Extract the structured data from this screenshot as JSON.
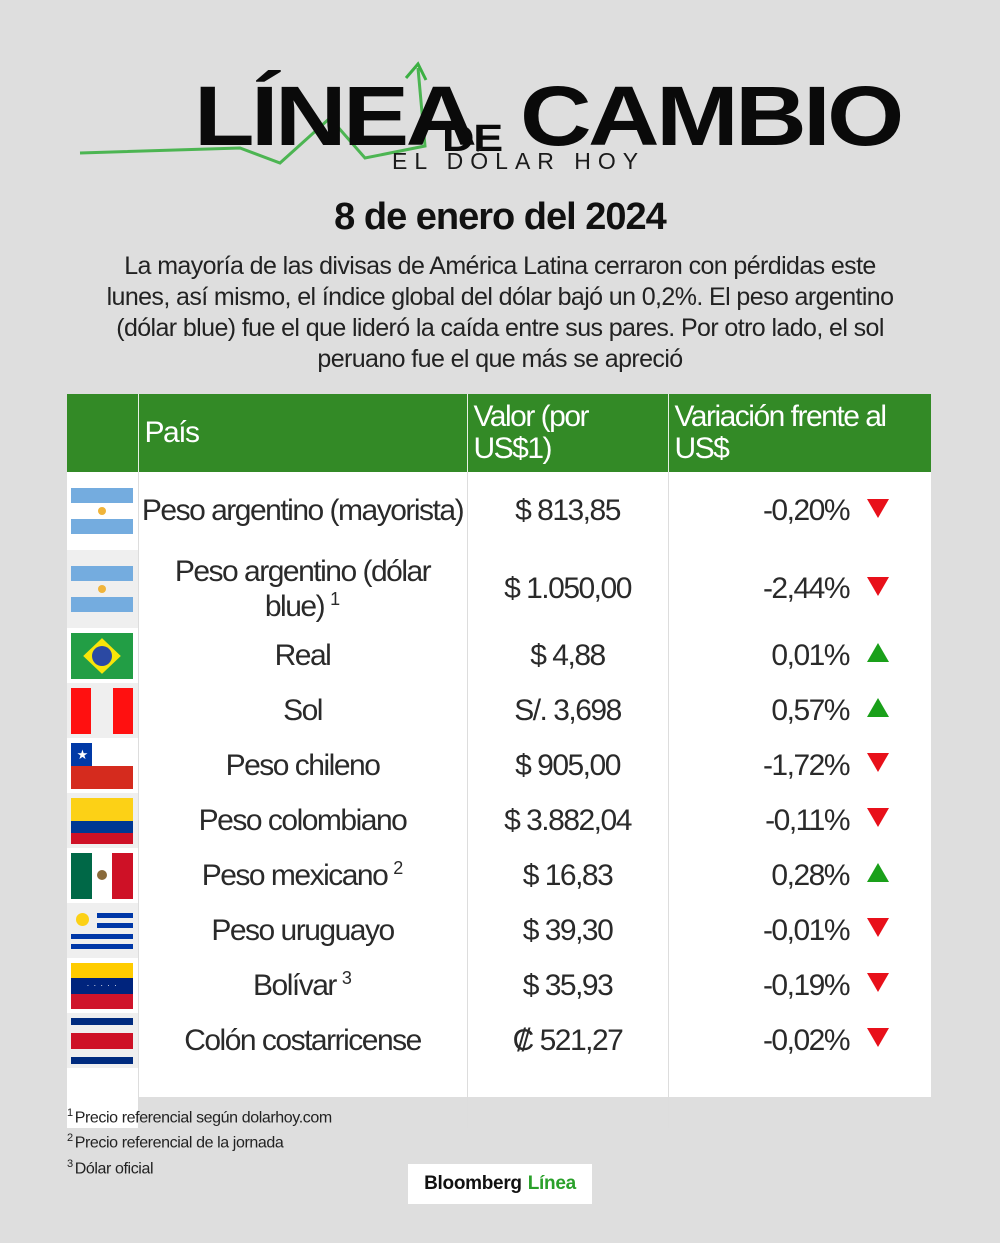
{
  "header": {
    "logo_word_1": "LÍNEA",
    "logo_word_de": "DE",
    "logo_word_2": "CAMBIO",
    "logo_subtitle": "EL DÓLAR HOY",
    "date": "8 de enero del 2024",
    "intro": "La mayoría de las divisas de América Latina cerraron con pérdidas este lunes, así mismo, el índice global del dólar bajó un 0,2%. El peso argentino (dólar blue) fue el que lideró la caída entre sus pares. Por otro lado, el sol peruano fue el que más se apreció"
  },
  "colors": {
    "header_green": "#338a26",
    "up_green": "#1aa01a",
    "down_red": "#e8101a",
    "background": "#dedede",
    "brand_green": "#2aa02a"
  },
  "table": {
    "columns": [
      "",
      "País",
      "Valor (por US$1)",
      "Variación frente al US$"
    ],
    "rows": [
      {
        "flag": "argentina-flag",
        "name": "Peso argentino (mayorista)",
        "sup": "",
        "value": "$ 813,85",
        "variation": "-0,20%",
        "direction": "down"
      },
      {
        "flag": "argentina-flag",
        "name": "Peso argentino (dólar blue)",
        "sup": "1",
        "value": "$ 1.050,00",
        "variation": "-2,44%",
        "direction": "down"
      },
      {
        "flag": "brazil-flag",
        "name": "Real",
        "sup": "",
        "value": "$ 4,88",
        "variation": "0,01%",
        "direction": "up"
      },
      {
        "flag": "peru-flag",
        "name": "Sol",
        "sup": "",
        "value": "S/. 3,698",
        "variation": "0,57%",
        "direction": "up"
      },
      {
        "flag": "chile-flag",
        "name": "Peso chileno",
        "sup": "",
        "value": "$ 905,00",
        "variation": "-1,72%",
        "direction": "down"
      },
      {
        "flag": "colombia-flag",
        "name": "Peso colombiano",
        "sup": "",
        "value": "$ 3.882,04",
        "variation": "-0,11%",
        "direction": "down"
      },
      {
        "flag": "mexico-flag",
        "name": "Peso mexicano",
        "sup": "2",
        "value": "$ 16,83",
        "variation": "0,28%",
        "direction": "up"
      },
      {
        "flag": "uruguay-flag",
        "name": "Peso uruguayo",
        "sup": "",
        "value": "$ 39,30",
        "variation": "-0,01%",
        "direction": "down"
      },
      {
        "flag": "venezuela-flag",
        "name": "Bolívar",
        "sup": "3",
        "value": "$ 35,93",
        "variation": "-0,19%",
        "direction": "down"
      },
      {
        "flag": "costa-rica-flag",
        "name": "Colón costarricense",
        "sup": "",
        "value": "₡ 521,27",
        "variation": "-0,02%",
        "direction": "down"
      }
    ]
  },
  "footnotes": [
    {
      "sup": "1",
      "text": "Precio referencial según dolarhoy.com"
    },
    {
      "sup": "2",
      "text": "Precio referencial de la jornada"
    },
    {
      "sup": "3",
      "text": "Dólar oficial"
    }
  ],
  "brand": {
    "part1": "Bloomberg",
    "part2": "Línea"
  }
}
